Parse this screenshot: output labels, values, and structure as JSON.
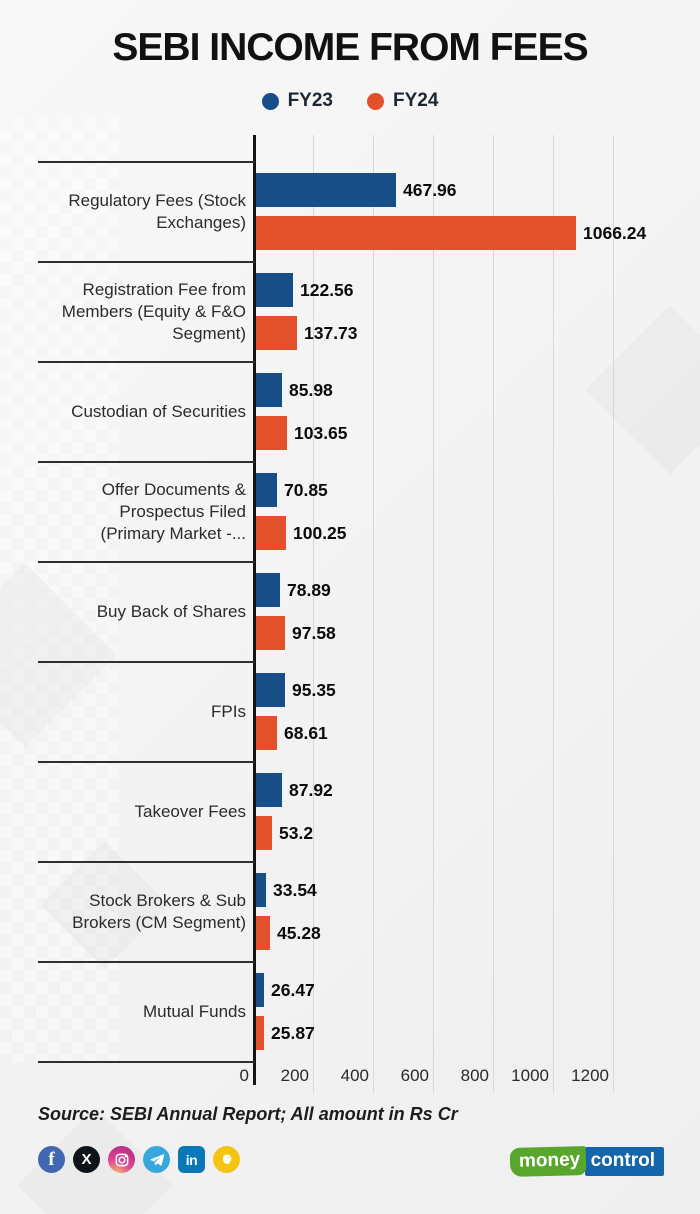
{
  "title": "SEBI INCOME FROM FEES",
  "legend": [
    {
      "label": "FY23",
      "color": "#174e87"
    },
    {
      "label": "FY24",
      "color": "#e2512b"
    }
  ],
  "chart_data": {
    "type": "bar",
    "orientation": "horizontal",
    "title": "SEBI INCOME FROM FEES",
    "xlabel": "",
    "ylabel": "",
    "xlim": [
      0,
      1200
    ],
    "xticks": [
      0,
      200,
      400,
      600,
      800,
      1000,
      1200
    ],
    "grid": true,
    "legend_position": "top",
    "categories": [
      "Regulatory Fees (Stock\nExchanges)",
      "Registration Fee from\nMembers (Equity & F&O\nSegment)",
      "Custodian of Securities",
      "Offer Documents &\nProspectus Filed\n(Primary Market -...",
      "Buy Back of Shares",
      "FPIs",
      "Takeover Fees",
      "Stock Brokers & Sub\nBrokers (CM Segment)",
      "Mutual Funds"
    ],
    "series": [
      {
        "name": "FY23",
        "color": "#174e87",
        "values": [
          467.96,
          122.56,
          85.98,
          70.85,
          78.89,
          95.35,
          87.92,
          33.54,
          26.47
        ]
      },
      {
        "name": "FY24",
        "color": "#e2512b",
        "values": [
          1066.24,
          137.73,
          103.65,
          100.25,
          97.58,
          68.61,
          53.2,
          45.28,
          25.87
        ]
      }
    ]
  },
  "source": "Source: SEBI Annual Report; All amount in Rs Cr",
  "footer": {
    "social": [
      "facebook",
      "x",
      "instagram",
      "telegram",
      "linkedin",
      "koo"
    ],
    "social_glyphs": {
      "facebook": "f",
      "x": "X",
      "linkedin": "in"
    },
    "brand": {
      "money": "money",
      "control": "control",
      "green": "#58a72c",
      "blue": "#1565ad"
    }
  }
}
